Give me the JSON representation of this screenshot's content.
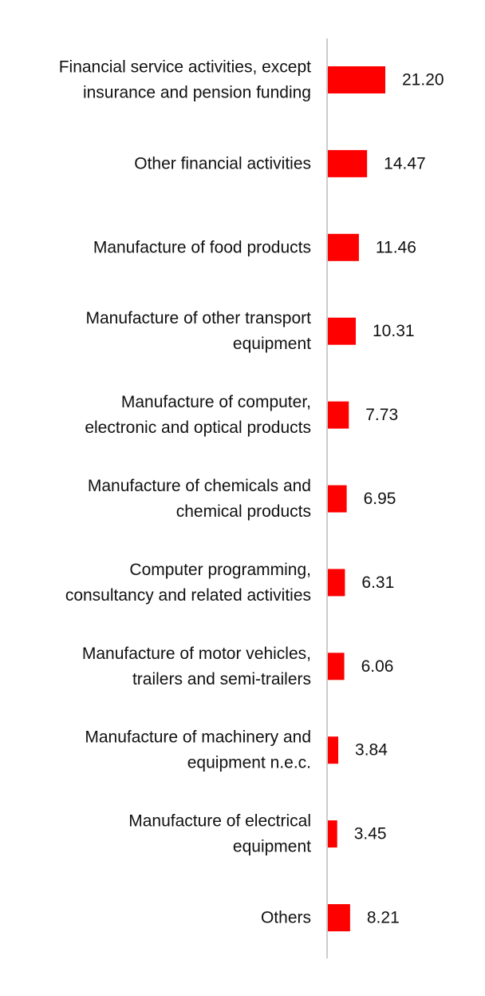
{
  "chart_data": {
    "type": "bar",
    "orientation": "horizontal",
    "categories": [
      [
        "Financial service activities, except",
        "insurance and pension funding"
      ],
      [
        "Other financial activities"
      ],
      [
        "Manufacture of food products"
      ],
      [
        "Manufacture of other transport",
        "equipment"
      ],
      [
        "Manufacture of computer,",
        "electronic and optical products"
      ],
      [
        "Manufacture of chemicals and",
        "chemical products"
      ],
      [
        "Computer programming,",
        "consultancy and related activities"
      ],
      [
        "Manufacture of motor vehicles,",
        "trailers and semi-trailers"
      ],
      [
        "Manufacture of machinery and",
        "equipment n.e.c."
      ],
      [
        "Manufacture of electrical",
        "equipment"
      ],
      [
        "Others"
      ]
    ],
    "values": [
      21.2,
      14.47,
      11.46,
      10.31,
      7.73,
      6.95,
      6.31,
      6.06,
      3.84,
      3.45,
      8.21
    ],
    "value_labels": [
      "21.20",
      "14.47",
      "11.46",
      "10.31",
      "7.73",
      "6.95",
      "6.31",
      "6.06",
      "3.84",
      "3.45",
      "8.21"
    ],
    "title": "",
    "xlabel": "",
    "ylabel": "",
    "xlim": [
      0,
      21.2
    ],
    "grid": false,
    "bar_color": "#ff0000",
    "axis_color": "#cccccc"
  }
}
